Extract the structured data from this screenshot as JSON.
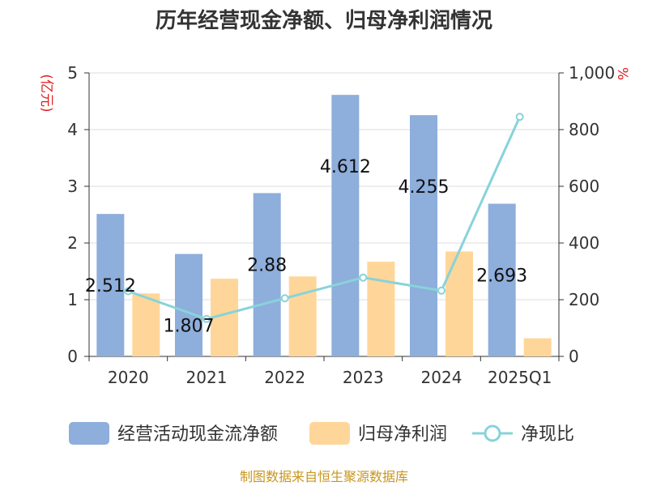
{
  "chart_data": {
    "type": "bar",
    "title": "历年经营现金净额、归母净利润情况",
    "categories": [
      "2020",
      "2021",
      "2022",
      "2023",
      "2024",
      "2025Q1"
    ],
    "y_left": {
      "unit": "(亿元)",
      "min": 0,
      "max": 5,
      "ticks": [
        "0",
        "1",
        "2",
        "3",
        "4",
        "5"
      ]
    },
    "y_right": {
      "unit": "%",
      "min": 0,
      "max": 1000,
      "ticks": [
        "0",
        "200",
        "400",
        "600",
        "800",
        "1,000"
      ]
    },
    "series": [
      {
        "name": "经营活动现金流净额",
        "type": "bar",
        "axis": "left",
        "color": "#8eaedb",
        "values": [
          2.512,
          1.807,
          2.88,
          4.612,
          4.255,
          2.693
        ],
        "labels": [
          "2.512",
          "1.807",
          "2.88",
          "4.612",
          "4.255",
          "2.693"
        ]
      },
      {
        "name": "归母净利润",
        "type": "bar",
        "axis": "left",
        "color": "#ffd699",
        "values": [
          1.11,
          1.37,
          1.41,
          1.67,
          1.85,
          0.32
        ]
      },
      {
        "name": "净现比",
        "type": "line",
        "axis": "right",
        "color": "#88d3da",
        "values": [
          230,
          132,
          205,
          278,
          232,
          845
        ]
      }
    ],
    "grid": true,
    "legend_position": "bottom"
  },
  "footer": {
    "source": "制图数据来自恒生聚源数据库"
  }
}
